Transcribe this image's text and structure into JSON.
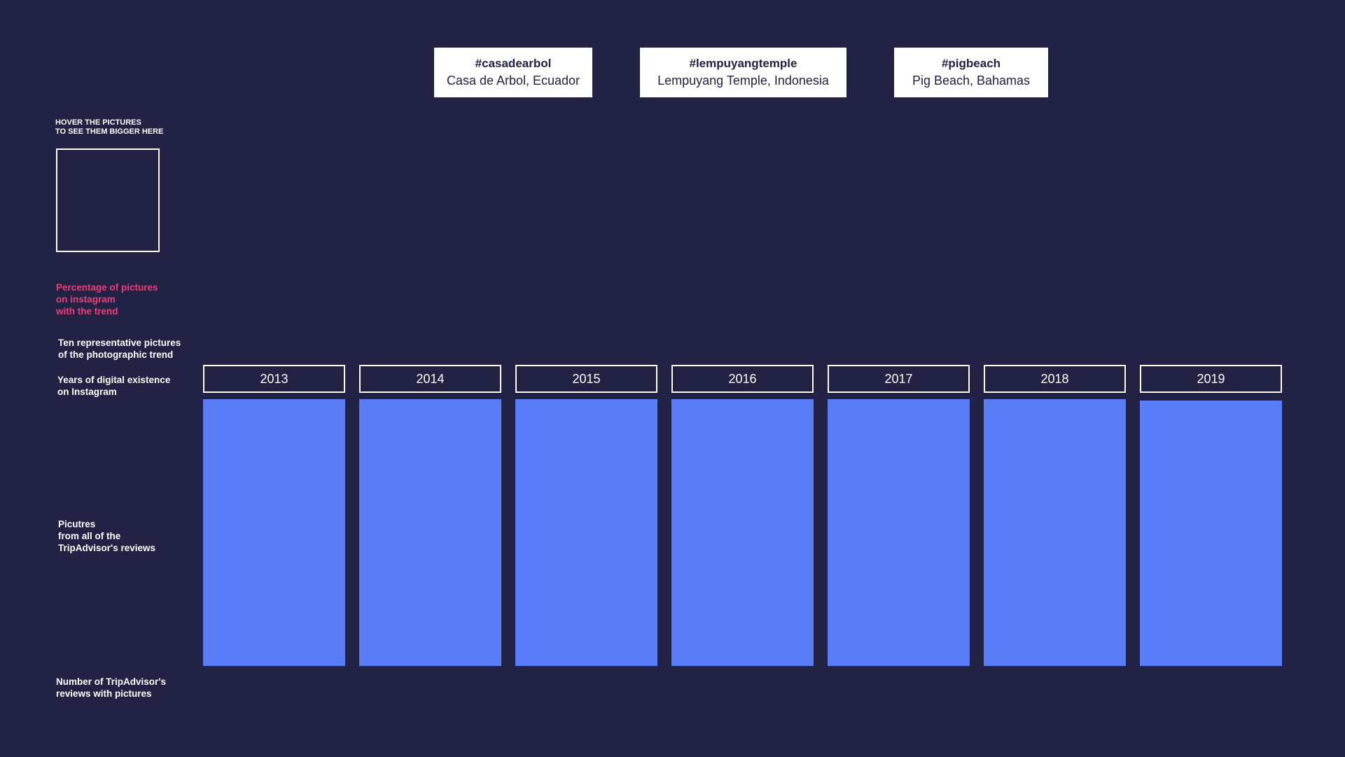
{
  "trends": [
    {
      "tag": "#casadearbol",
      "place": "Casa de Arbol, Ecuador"
    },
    {
      "tag": "#lempuyangtemple",
      "place": "Lempuyang Temple, Indonesia"
    },
    {
      "tag": "#pigbeach",
      "place": "Pig Beach, Bahamas"
    }
  ],
  "sidebar": {
    "hover_hint": "HOVER THE PICTURES\nTO SEE THEM BIGGER HERE",
    "percentage_label": "Percentage of pictures\non instagram\nwith the trend",
    "representative_label": "Ten representative pictures\nof the photographic trend",
    "years_label": "Years of digital existence\non Instagram",
    "tripadvisor_pictures_label": "Picutres\nfrom all of the\nTripAdvisor's reviews",
    "reviews_count_label": "Number of TripAdvisor's\nreviews with pictures"
  },
  "years": [
    "2013",
    "2014",
    "2015",
    "2016",
    "2017",
    "2018",
    "2019"
  ],
  "colors": {
    "background": "#222244",
    "column": "#5a7cf7",
    "accent": "#e8407a"
  }
}
